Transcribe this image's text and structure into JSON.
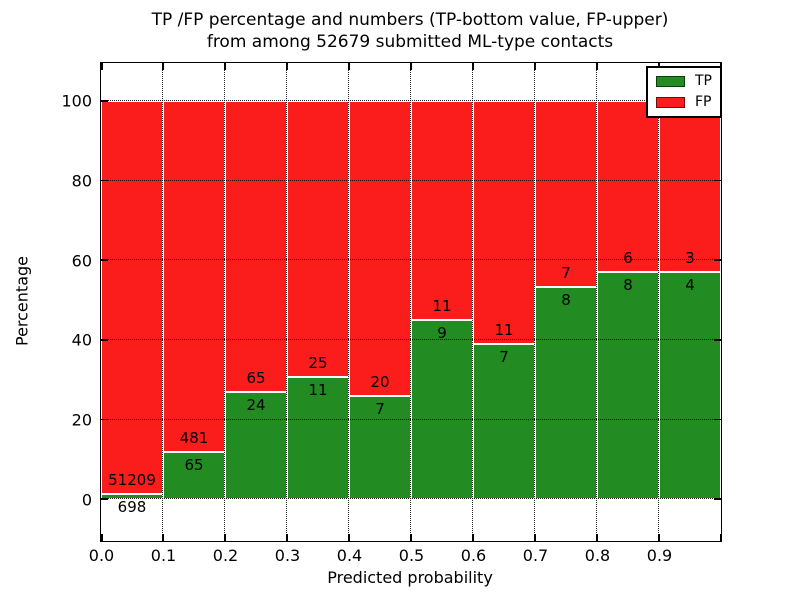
{
  "chart_data": {
    "type": "bar",
    "subtype": "stacked-percentage",
    "title": "TP /FP percentage and numbers (TP-bottom value, FP-upper)\nfrom among 52679 submitted ML-type contacts",
    "title_lines": [
      "TP /FP percentage and numbers (TP-bottom value, FP-upper)",
      "from among 52679 submitted ML-type contacts"
    ],
    "total_submitted_contacts": 52679,
    "xlabel": "Predicted probability",
    "ylabel": "Percentage",
    "categories": [
      "0.0-0.1",
      "0.1-0.2",
      "0.2-0.3",
      "0.3-0.4",
      "0.4-0.5",
      "0.5-0.6",
      "0.6-0.7",
      "0.7-0.8",
      "0.8-0.9",
      "0.9-1.0"
    ],
    "series": [
      {
        "name": "TP",
        "color": "#228B22",
        "values": [
          698,
          65,
          24,
          11,
          7,
          9,
          7,
          8,
          8,
          4
        ]
      },
      {
        "name": "FP",
        "color": "#FB1C1C",
        "values": [
          51209,
          481,
          65,
          25,
          20,
          11,
          11,
          7,
          6,
          3
        ]
      }
    ],
    "bar_label_note": "TP count shown below segment boundary, FP count above",
    "x_tick_labels": [
      "0.0",
      "0.1",
      "0.2",
      "0.3",
      "0.4",
      "0.5",
      "0.6",
      "0.7",
      "0.8",
      "0.9"
    ],
    "y_ticks": [
      0,
      20,
      40,
      60,
      80,
      100
    ],
    "xlim": [
      0.0,
      1.0
    ],
    "ylim": [
      -10.5,
      109.5
    ],
    "grid": "dotted black, drawn above bars, vertical every 0.1 and horizontal every 20",
    "legend": {
      "position": "upper-right",
      "entries": [
        {
          "label": "TP",
          "color": "#228B22"
        },
        {
          "label": "FP",
          "color": "#FB1C1C"
        }
      ]
    }
  }
}
